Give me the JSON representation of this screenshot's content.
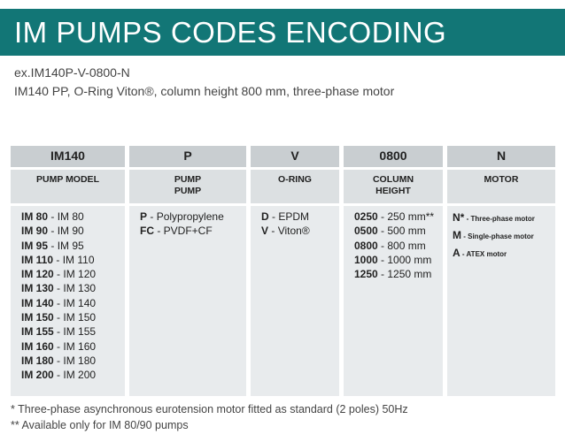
{
  "header": {
    "title": "IM PUMPS CODES ENCODING"
  },
  "example": {
    "code": "ex.IM140P-V-0800-N",
    "description": "IM140 PP, O-Ring Viton®, column height 800 mm, three-phase motor"
  },
  "table": {
    "columns": [
      {
        "code": "IM140",
        "label": [
          "PUMP MODEL"
        ],
        "items": [
          {
            "code": "IM 80",
            "desc": "- IM 80"
          },
          {
            "code": "IM 90",
            "desc": "- IM 90"
          },
          {
            "code": "IM 95",
            "desc": "- IM 95"
          },
          {
            "code": "IM 110",
            "desc": "- IM 110"
          },
          {
            "code": "IM 120",
            "desc": "- IM 120"
          },
          {
            "code": "IM 130",
            "desc": "- IM 130"
          },
          {
            "code": "IM 140",
            "desc": "- IM 140"
          },
          {
            "code": "IM 150",
            "desc": "- IM 150"
          },
          {
            "code": "IM 155",
            "desc": "- IM 155"
          },
          {
            "code": "IM 160",
            "desc": "- IM 160"
          },
          {
            "code": "IM 180",
            "desc": "- IM 180"
          },
          {
            "code": "IM 200",
            "desc": "- IM 200"
          }
        ]
      },
      {
        "code": "P",
        "label": [
          "PUMP",
          "PUMP"
        ],
        "items": [
          {
            "code": "P",
            "desc": "- Polypropylene"
          },
          {
            "code": "FC",
            "desc": "- PVDF+CF"
          }
        ]
      },
      {
        "code": "V",
        "label": [
          "O-RING"
        ],
        "items": [
          {
            "code": "D",
            "desc": "- EPDM"
          },
          {
            "code": "V",
            "desc": "- Viton®"
          }
        ]
      },
      {
        "code": "0800",
        "label": [
          "COLUMN",
          "HEIGHT"
        ],
        "items": [
          {
            "code": "0250",
            "desc": "- 250 mm**"
          },
          {
            "code": "0500",
            "desc": "- 500 mm"
          },
          {
            "code": "0800",
            "desc": "- 800 mm"
          },
          {
            "code": "1000",
            "desc": "- 1000 mm"
          },
          {
            "code": "1250",
            "desc": "- 1250 mm"
          }
        ]
      },
      {
        "code": "N",
        "label": [
          "MOTOR"
        ],
        "items": [
          {
            "code": "N*",
            "desc": "- Three-phase motor"
          },
          {
            "code": "M",
            "desc": "- Single-phase motor"
          },
          {
            "code": "A",
            "desc": "- ATEX motor"
          }
        ]
      }
    ]
  },
  "footnotes": [
    "* Three-phase asynchronous eurotension motor fitted as standard (2 poles) 50Hz",
    "** Available only for IM 80/90 pumps"
  ]
}
